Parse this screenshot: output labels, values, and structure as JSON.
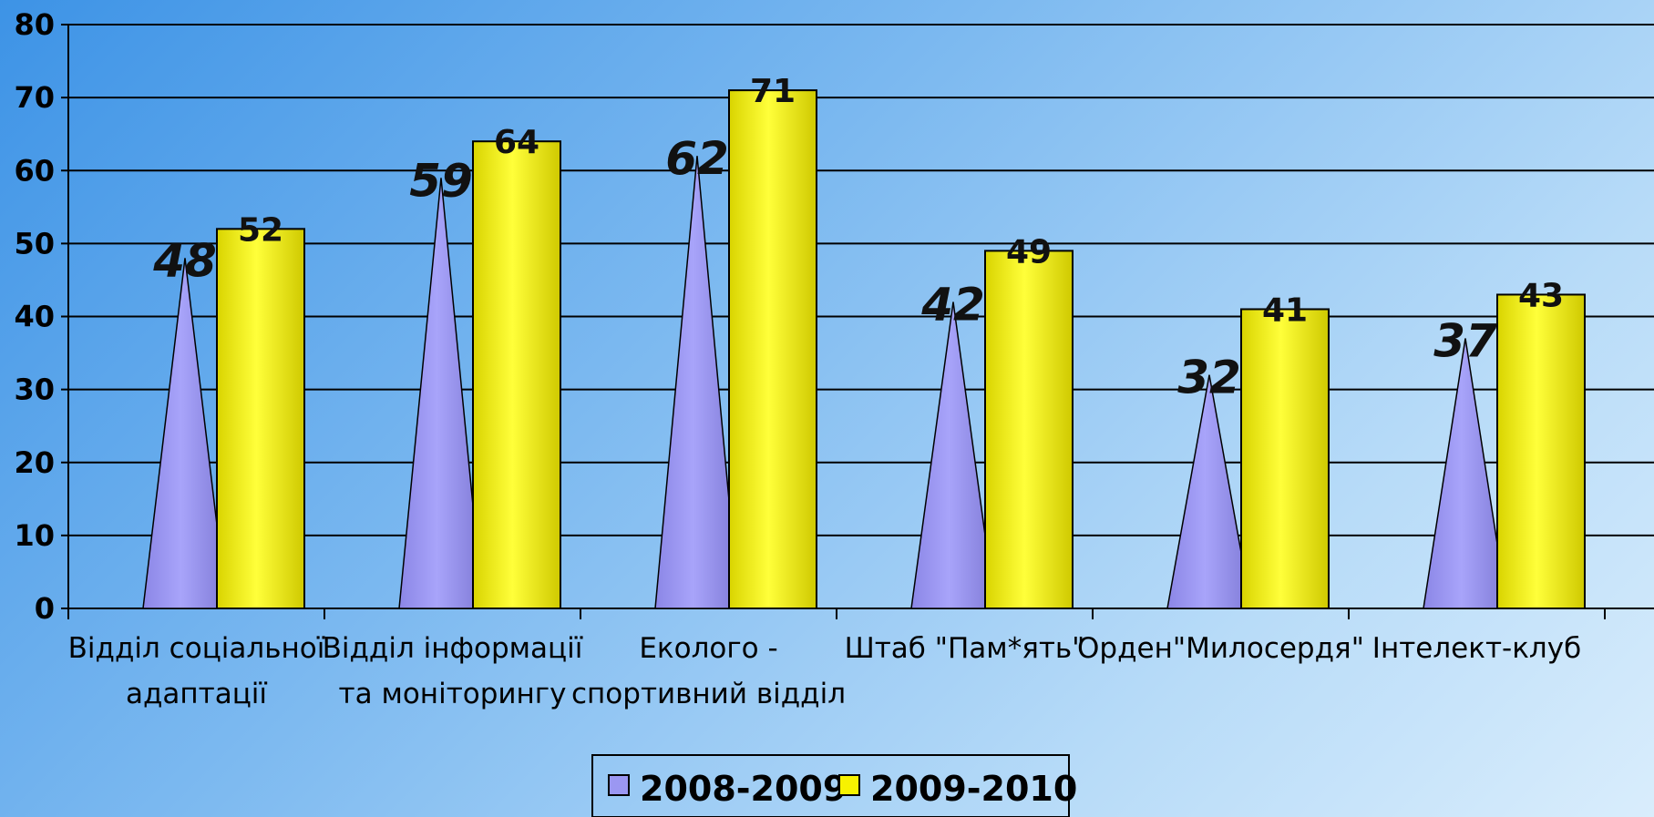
{
  "chart_data": {
    "type": "bar",
    "categories": [
      [
        "Відділ соціальної",
        "адаптації"
      ],
      [
        "Відділ інформації",
        "та моніторингу"
      ],
      [
        "Еколого -",
        "спортивний відділ"
      ],
      [
        "Штаб \"Пам*ять\""
      ],
      [
        "Орден\"Милосердя\""
      ],
      [
        "Інтелект-клуб"
      ]
    ],
    "series": [
      {
        "name": "2008-2009",
        "values": [
          48,
          59,
          62,
          42,
          32,
          37
        ],
        "color": "#9b97f2",
        "shape": "cone"
      },
      {
        "name": "2009-2010",
        "values": [
          52,
          64,
          71,
          49,
          41,
          43
        ],
        "color": "#f7f200",
        "shape": "cylinder"
      }
    ],
    "ylim": [
      0,
      80
    ],
    "yticks": [
      0,
      10,
      20,
      30,
      40,
      50,
      60,
      70,
      80
    ],
    "grid": true,
    "legend_position": "bottom-center"
  }
}
